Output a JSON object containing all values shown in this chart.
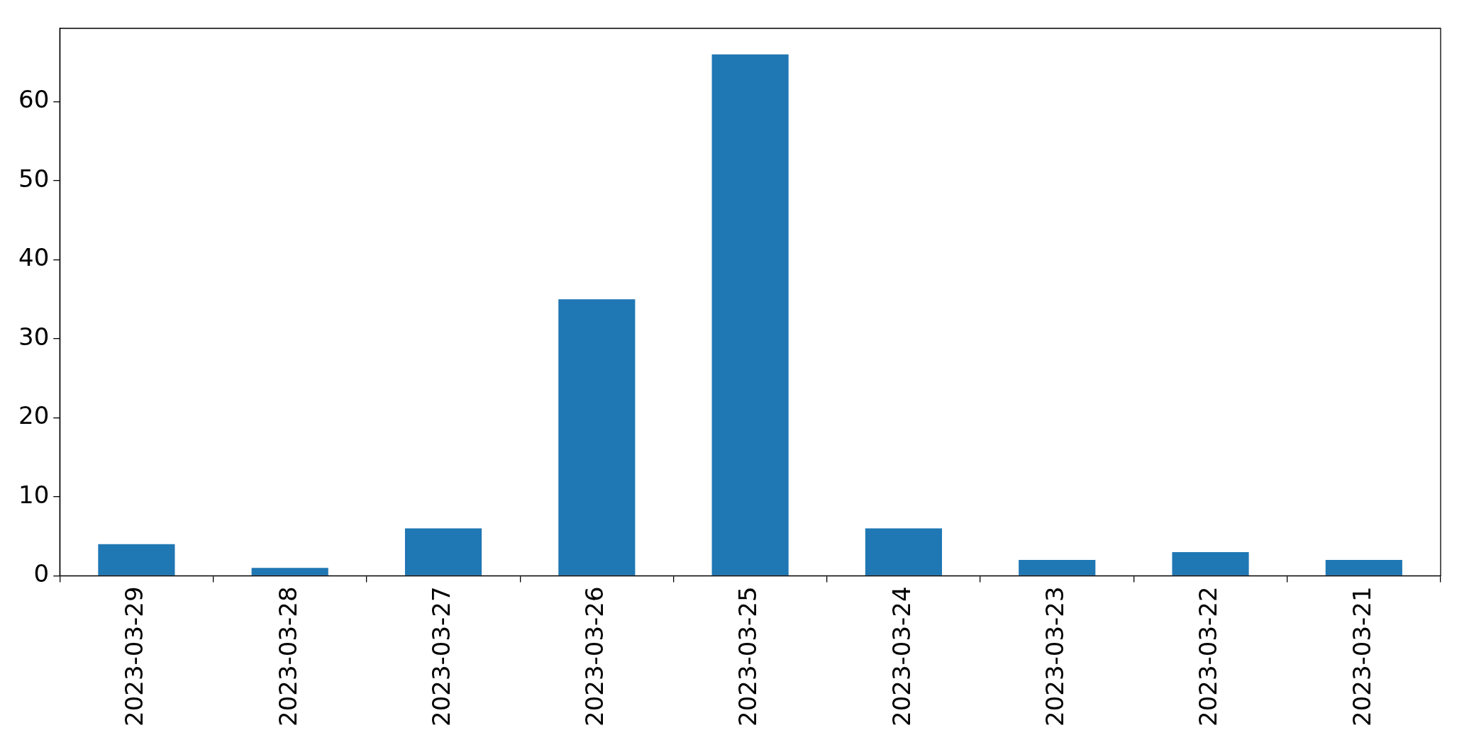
{
  "chart_data": {
    "type": "bar",
    "categories": [
      "2023-03-29",
      "2023-03-28",
      "2023-03-27",
      "2023-03-26",
      "2023-03-25",
      "2023-03-24",
      "2023-03-23",
      "2023-03-22",
      "2023-03-21"
    ],
    "values": [
      4,
      1,
      6,
      35,
      66,
      6,
      2,
      3,
      2
    ],
    "color": "#1f77b4",
    "ylim": [
      0,
      69.3
    ],
    "yticks": [
      0,
      10,
      20,
      30,
      40,
      50,
      60
    ]
  }
}
